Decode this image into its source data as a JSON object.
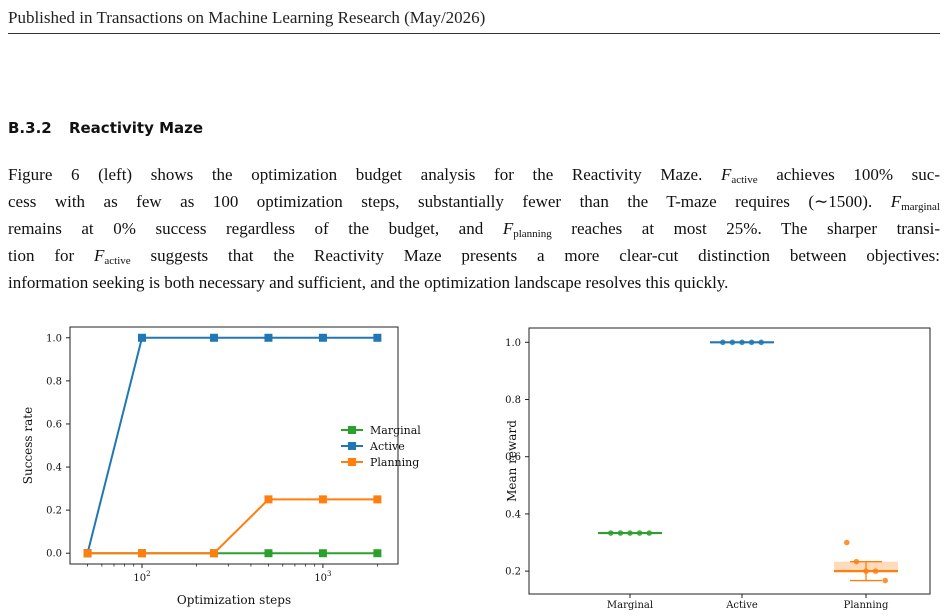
{
  "header": {
    "venue": "Published in Transactions on Machine Learning Research (May/2026)"
  },
  "section": {
    "number": "B.3.2",
    "title": "Reactivity Maze"
  },
  "paragraph": {
    "lines": [
      [
        "Figure 6 (left) shows the optimization budget analysis for the Reactivity Maze. ",
        {
          "f": "active"
        },
        " achieves 100% suc-"
      ],
      [
        "cess with as few as 100 optimization steps, substantially fewer than the T-maze requires (∼1500). ",
        {
          "f": "marginal"
        }
      ],
      [
        "remains at 0% success regardless of the budget, and ",
        {
          "f": "planning"
        },
        " reaches at most 25%.  The sharper transi-"
      ],
      [
        "tion for ",
        {
          "f": "active"
        },
        " suggests that the Reactivity Maze presents a more clear-cut distinction between objectives:"
      ],
      [
        "information seeking is both necessary and sufficient, and the optimization landscape resolves this quickly."
      ]
    ]
  },
  "left_chart_text": {
    "xlabel": "Optimization steps",
    "ylabel": "Success rate",
    "xticks": [
      {
        "base": "10",
        "exp": "2",
        "v": 100
      },
      {
        "base": "10",
        "exp": "3",
        "v": 1000
      }
    ],
    "yticks": [
      "0.0",
      "0.2",
      "0.4",
      "0.6",
      "0.8",
      "1.0"
    ]
  },
  "right_chart_text": {
    "ylabel": "Mean reward",
    "yticks": [
      "0.2",
      "0.4",
      "0.6",
      "0.8",
      "1.0"
    ],
    "categories": [
      "Marginal",
      "Active",
      "Planning"
    ]
  },
  "chart_data": [
    {
      "type": "line",
      "xlabel": "Optimization steps",
      "ylabel": "Success rate",
      "xscale": "log",
      "xlim": [
        40,
        2600
      ],
      "ylim": [
        -0.05,
        1.05
      ],
      "legend": "center-right",
      "x": [
        50,
        100,
        250,
        500,
        1000,
        2000
      ],
      "series": [
        {
          "name": "Marginal",
          "color": "#2ca02c",
          "values": [
            0,
            0,
            0,
            0,
            0,
            0
          ]
        },
        {
          "name": "Active",
          "color": "#1f77b4",
          "values": [
            0,
            1,
            1,
            1,
            1,
            1
          ]
        },
        {
          "name": "Planning",
          "color": "#ff7f0e",
          "values": [
            0,
            0,
            0,
            0.25,
            0.25,
            0.25
          ]
        }
      ]
    },
    {
      "type": "box",
      "ylabel": "Mean reward",
      "ylim": [
        0.12,
        1.05
      ],
      "categories": [
        "Marginal",
        "Active",
        "Planning"
      ],
      "colors": [
        "#2ca02c",
        "#1f77b4",
        "#ff7f0e"
      ],
      "points": [
        [
          0.333,
          0.333,
          0.333,
          0.333,
          0.333
        ],
        [
          1.0,
          1.0,
          1.0,
          1.0,
          1.0
        ],
        [
          0.3,
          0.233,
          0.2,
          0.2,
          0.167
        ]
      ],
      "medians": [
        0.333,
        1.0,
        0.2
      ],
      "q1": [
        0.333,
        1.0,
        0.2
      ],
      "q3": [
        0.333,
        1.0,
        0.233
      ],
      "whisker_low": [
        0.333,
        1.0,
        0.167
      ],
      "whisker_high": [
        0.333,
        1.0,
        0.233
      ]
    }
  ]
}
